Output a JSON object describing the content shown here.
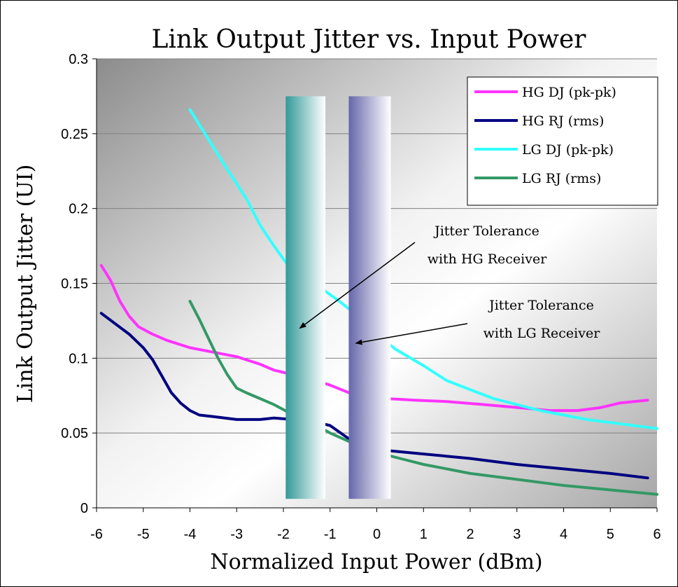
{
  "chart_data": {
    "type": "line",
    "title": "Link Output Jitter vs. Input Power",
    "xlabel": "Normalized Input Power (dBm)",
    "ylabel": "Link Output Jitter (UI)",
    "xlim": [
      -6,
      6
    ],
    "ylim": [
      0,
      0.3
    ],
    "x_ticks": [
      "-6",
      "-5",
      "-4",
      "-3",
      "-2",
      "-1",
      "0",
      "1",
      "2",
      "3",
      "4",
      "5",
      "6"
    ],
    "y_ticks": [
      "0",
      "0.05",
      "0.1",
      "0.15",
      "0.2",
      "0.25",
      "0.3"
    ],
    "grid": "horizontal",
    "legend_position": "top-right",
    "series": [
      {
        "name": "HG DJ (pk-pk)",
        "color": "#ff33ff",
        "points": [
          [
            -5.9,
            0.162
          ],
          [
            -5.7,
            0.152
          ],
          [
            -5.5,
            0.138
          ],
          [
            -5.3,
            0.128
          ],
          [
            -5.1,
            0.121
          ],
          [
            -4.8,
            0.116
          ],
          [
            -4.5,
            0.112
          ],
          [
            -4.2,
            0.109
          ],
          [
            -4.0,
            0.107
          ],
          [
            -3.5,
            0.104
          ],
          [
            -3.0,
            0.101
          ],
          [
            -2.5,
            0.096
          ],
          [
            -2.2,
            0.092
          ],
          [
            -1.8,
            0.089
          ],
          [
            -1.4,
            0.086
          ],
          [
            -1.0,
            0.082
          ],
          [
            -0.6,
            0.077
          ],
          [
            -0.2,
            0.074
          ],
          [
            0.2,
            0.073
          ],
          [
            0.8,
            0.072
          ],
          [
            1.5,
            0.071
          ],
          [
            2.3,
            0.069
          ],
          [
            3.0,
            0.067
          ],
          [
            3.7,
            0.065
          ],
          [
            4.3,
            0.065
          ],
          [
            4.8,
            0.067
          ],
          [
            5.2,
            0.07
          ],
          [
            5.8,
            0.072
          ]
        ]
      },
      {
        "name": "HG RJ (rms)",
        "color": "#000080",
        "points": [
          [
            -5.9,
            0.13
          ],
          [
            -5.6,
            0.123
          ],
          [
            -5.3,
            0.116
          ],
          [
            -5.0,
            0.107
          ],
          [
            -4.8,
            0.099
          ],
          [
            -4.6,
            0.088
          ],
          [
            -4.4,
            0.077
          ],
          [
            -4.2,
            0.07
          ],
          [
            -4.0,
            0.065
          ],
          [
            -3.8,
            0.062
          ],
          [
            -3.5,
            0.061
          ],
          [
            -3.0,
            0.059
          ],
          [
            -2.5,
            0.059
          ],
          [
            -2.2,
            0.06
          ],
          [
            -1.8,
            0.059
          ],
          [
            -1.4,
            0.058
          ],
          [
            -1.0,
            0.055
          ],
          [
            -0.5,
            0.044
          ],
          [
            0,
            0.039
          ],
          [
            1.0,
            0.036
          ],
          [
            2.0,
            0.033
          ],
          [
            3.0,
            0.029
          ],
          [
            4.0,
            0.026
          ],
          [
            5.0,
            0.023
          ],
          [
            5.8,
            0.02
          ]
        ]
      },
      {
        "name": "LG DJ (pk-pk)",
        "color": "#33ffff",
        "points": [
          [
            -4.0,
            0.266
          ],
          [
            -3.6,
            0.246
          ],
          [
            -3.2,
            0.226
          ],
          [
            -2.8,
            0.207
          ],
          [
            -2.5,
            0.189
          ],
          [
            -2.2,
            0.175
          ],
          [
            -1.9,
            0.162
          ],
          [
            -1.6,
            0.154
          ],
          [
            -1.2,
            0.147
          ],
          [
            -0.8,
            0.138
          ],
          [
            -0.4,
            0.128
          ],
          [
            0,
            0.116
          ],
          [
            0.4,
            0.106
          ],
          [
            1.0,
            0.095
          ],
          [
            1.5,
            0.085
          ],
          [
            2.0,
            0.079
          ],
          [
            2.5,
            0.073
          ],
          [
            3.0,
            0.069
          ],
          [
            3.5,
            0.065
          ],
          [
            4.0,
            0.062
          ],
          [
            4.5,
            0.059
          ],
          [
            5.0,
            0.057
          ],
          [
            5.5,
            0.055
          ],
          [
            6.0,
            0.053
          ]
        ]
      },
      {
        "name": "LG RJ (rms)",
        "color": "#339966",
        "points": [
          [
            -4.0,
            0.138
          ],
          [
            -3.8,
            0.126
          ],
          [
            -3.6,
            0.113
          ],
          [
            -3.4,
            0.1
          ],
          [
            -3.2,
            0.089
          ],
          [
            -3.0,
            0.08
          ],
          [
            -2.8,
            0.077
          ],
          [
            -2.5,
            0.073
          ],
          [
            -2.2,
            0.069
          ],
          [
            -1.9,
            0.064
          ],
          [
            -1.5,
            0.059
          ],
          [
            -1.0,
            0.05
          ],
          [
            -0.5,
            0.043
          ],
          [
            0,
            0.037
          ],
          [
            0.5,
            0.033
          ],
          [
            1.0,
            0.029
          ],
          [
            1.5,
            0.026
          ],
          [
            2.0,
            0.023
          ],
          [
            2.5,
            0.021
          ],
          [
            3.0,
            0.019
          ],
          [
            4.0,
            0.015
          ],
          [
            5.0,
            0.012
          ],
          [
            6.0,
            0.009
          ]
        ]
      }
    ],
    "shaded_bands": [
      {
        "x_start": -1.95,
        "x_end": -1.1,
        "y_top": 0.275,
        "y_bottom": 0.006,
        "color_left": "#339999",
        "color_right": "#ffffff"
      },
      {
        "x_start": -0.6,
        "x_end": 0.3,
        "y_top": 0.275,
        "y_bottom": 0.006,
        "color_left": "#6666aa",
        "color_right": "#ffffff"
      }
    ],
    "annotations": [
      {
        "line1": "Jitter Tolerance",
        "line2": "with HG Receiver",
        "arrow_to": [
          -1.65,
          0.12
        ]
      },
      {
        "line1": "Jitter Tolerance",
        "line2": "with LG Receiver",
        "arrow_to": [
          -0.45,
          0.11
        ]
      }
    ]
  }
}
